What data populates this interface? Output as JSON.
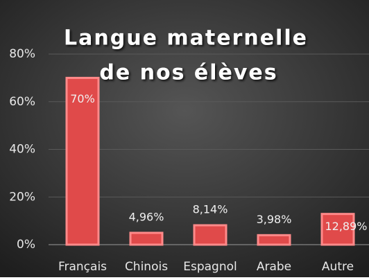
{
  "chart_data": {
    "type": "bar",
    "title": [
      "Langue maternelle",
      "de nos élèves"
    ],
    "categories": [
      "Français",
      "Chinois",
      "Espagnol",
      "Arabe",
      "Autre"
    ],
    "values": [
      70,
      4.96,
      8.14,
      3.98,
      12.89
    ],
    "value_labels": [
      "70%",
      "4,96%",
      "8,14%",
      "3,98%",
      "12,89%"
    ],
    "color": "#e04a4a",
    "ylim": [
      0,
      80
    ],
    "yticks": [
      {
        "value": 0,
        "label": "0%"
      },
      {
        "value": 20,
        "label": "20%"
      },
      {
        "value": 40,
        "label": "40%"
      },
      {
        "value": 60,
        "label": "60%"
      },
      {
        "value": 80,
        "label": "80%"
      }
    ],
    "grid": true
  }
}
